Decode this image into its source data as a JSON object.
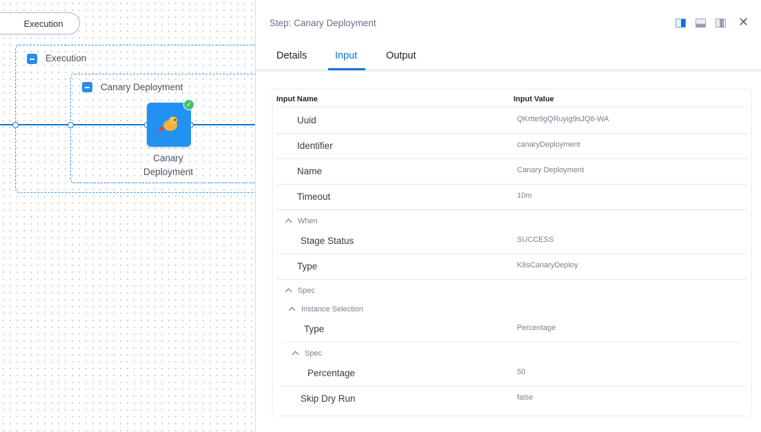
{
  "canvas": {
    "stage_pill": "Execution",
    "execution_group": "Execution",
    "step_group": "Canary Deployment",
    "node_label": "Canary Deployment",
    "node_status": "success",
    "accent": "#0b72d6"
  },
  "panel": {
    "title": "Step: Canary Deployment",
    "tabs": [
      "Details",
      "Input",
      "Output"
    ],
    "active_tab": "Input",
    "icons": [
      "dock-right-icon",
      "dock-bottom-icon",
      "float-icon",
      "close-icon"
    ]
  },
  "table": {
    "headers": {
      "name": "Input Name",
      "value": "Input Value"
    },
    "rows": [
      {
        "name": "Uuid",
        "value": "QKrtte9gQRuyig9sJQ8-WA"
      },
      {
        "name": "Identifier",
        "value": "canaryDeployment"
      },
      {
        "name": "Name",
        "value": "Canary Deployment"
      },
      {
        "name": "Timeout",
        "value": "10m"
      }
    ],
    "when": {
      "label": "When",
      "rows": [
        {
          "name": "Stage Status",
          "value": "SUCCESS"
        }
      ]
    },
    "type": {
      "name": "Type",
      "value": "K8sCanaryDeploy"
    },
    "spec": {
      "label": "Spec",
      "instance_selection": {
        "label": "Instance Selection",
        "type": {
          "name": "Type",
          "value": "Percentage"
        },
        "spec": {
          "label": "Spec",
          "percentage": {
            "name": "Percentage",
            "value": "50"
          }
        }
      },
      "skip_dry_run": {
        "name": "Skip Dry Run",
        "value": "false"
      }
    }
  }
}
